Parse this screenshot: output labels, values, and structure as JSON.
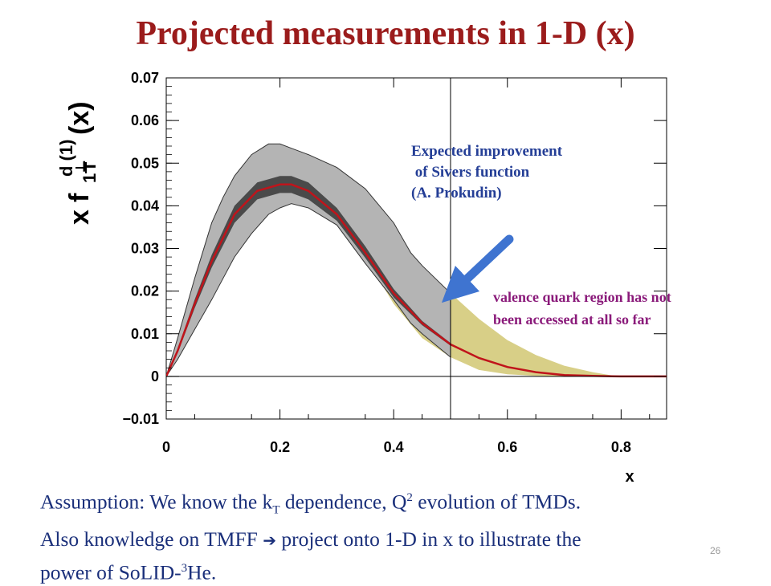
{
  "slide": {
    "title": "Projected measurements in 1-D  (x)",
    "page_number": "26"
  },
  "callouts": {
    "improvement": "Expected improvement\n of Sivers function\n(A. Prokudin)",
    "valence_line1": "valence quark region has not",
    "valence_line2": "been accessed at all so far"
  },
  "footer": {
    "line1_a": "Assumption:  We know the k",
    "line1_sub": "T",
    "line1_b": " dependence, Q",
    "line1_sup": "2",
    "line1_c": " evolution of TMDs.",
    "line2_a": "Also knowledge on TMFF  ",
    "line2_arrow": "➔",
    "line2_b": " project onto 1-D in x to illustrate the",
    "line3_a": "power of SoLID-",
    "line3_sup": "3",
    "line3_b": "He."
  },
  "colors": {
    "title": "#9b1c1c",
    "outer_band": "#b4b4b4",
    "inner_band": "#4a4a4a",
    "projected_band": "#d8cf87",
    "central_curve": "#c0141b",
    "arrow": "#3f74d0"
  },
  "chart_data": {
    "type": "line",
    "ylabel_parts": {
      "x": "x",
      "f": "f",
      "T": "T",
      "sub1": "1",
      "sup": "d (1)",
      "arg": "(x)"
    },
    "xlabel": "x",
    "xlim": [
      0,
      0.88
    ],
    "ylim": [
      -0.01,
      0.07
    ],
    "x_ticks": [
      0,
      0.2,
      0.4,
      0.6,
      0.8
    ],
    "x_tick_labels": [
      "0",
      "0.2",
      "0.4",
      "0.6",
      "0.8"
    ],
    "y_ticks": [
      -0.01,
      0,
      0.01,
      0.02,
      0.03,
      0.04,
      0.05,
      0.06,
      0.07
    ],
    "y_tick_labels": [
      "−0.01",
      "0",
      "0.01",
      "0.02",
      "0.03",
      "0.04",
      "0.05",
      "0.06",
      "0.07"
    ],
    "divider_x": 0.5,
    "series": [
      {
        "role": "central",
        "x": [
          0,
          0.02,
          0.05,
          0.08,
          0.12,
          0.16,
          0.2,
          0.22,
          0.25,
          0.3,
          0.35,
          0.4,
          0.45,
          0.5,
          0.55,
          0.6,
          0.65,
          0.7,
          0.75,
          0.8,
          0.85,
          0.88
        ],
        "y": [
          0,
          0.006,
          0.017,
          0.027,
          0.038,
          0.0435,
          0.045,
          0.045,
          0.0435,
          0.038,
          0.029,
          0.0195,
          0.0125,
          0.0075,
          0.0043,
          0.0022,
          0.001,
          0.0003,
          0.0001,
          0,
          0,
          0
        ]
      },
      {
        "role": "inner_band",
        "x": [
          0,
          0.02,
          0.05,
          0.08,
          0.12,
          0.16,
          0.2,
          0.22,
          0.25,
          0.3,
          0.35,
          0.4,
          0.45,
          0.5
        ],
        "upper": [
          0,
          0.0065,
          0.018,
          0.0285,
          0.04,
          0.0455,
          0.047,
          0.047,
          0.0455,
          0.0395,
          0.0305,
          0.0205,
          0.013,
          0.0078
        ],
        "lower": [
          0,
          0.0055,
          0.016,
          0.0255,
          0.036,
          0.0415,
          0.043,
          0.043,
          0.0415,
          0.0365,
          0.0278,
          0.0185,
          0.012,
          0.0072
        ]
      },
      {
        "role": "outer_band",
        "x": [
          0,
          0.02,
          0.05,
          0.08,
          0.1,
          0.12,
          0.15,
          0.18,
          0.2,
          0.22,
          0.25,
          0.3,
          0.35,
          0.4,
          0.43,
          0.45,
          0.5
        ],
        "upper": [
          0,
          0.009,
          0.023,
          0.036,
          0.042,
          0.047,
          0.052,
          0.0545,
          0.0545,
          0.0535,
          0.052,
          0.049,
          0.044,
          0.036,
          0.029,
          0.026,
          0.0195
        ],
        "lower": [
          0,
          0.004,
          0.011,
          0.018,
          0.023,
          0.028,
          0.0335,
          0.038,
          0.0395,
          0.0405,
          0.0395,
          0.0355,
          0.0265,
          0.018,
          0.0125,
          0.01,
          0.0045
        ]
      },
      {
        "role": "projected_band",
        "x": [
          0.25,
          0.3,
          0.35,
          0.4,
          0.45,
          0.5,
          0.55,
          0.6,
          0.65,
          0.7,
          0.75,
          0.78,
          0.8,
          0.85,
          0.88
        ],
        "upper": [
          0.0435,
          0.038,
          0.029,
          0.0205,
          0.0165,
          0.0195,
          0.0135,
          0.0085,
          0.005,
          0.0025,
          0.001,
          0.0003,
          0,
          0,
          0
        ],
        "lower": [
          0.0435,
          0.038,
          0.028,
          0.017,
          0.009,
          0.0045,
          0.0015,
          0.0005,
          0.0001,
          0,
          0,
          0,
          0,
          0,
          0
        ]
      }
    ]
  }
}
